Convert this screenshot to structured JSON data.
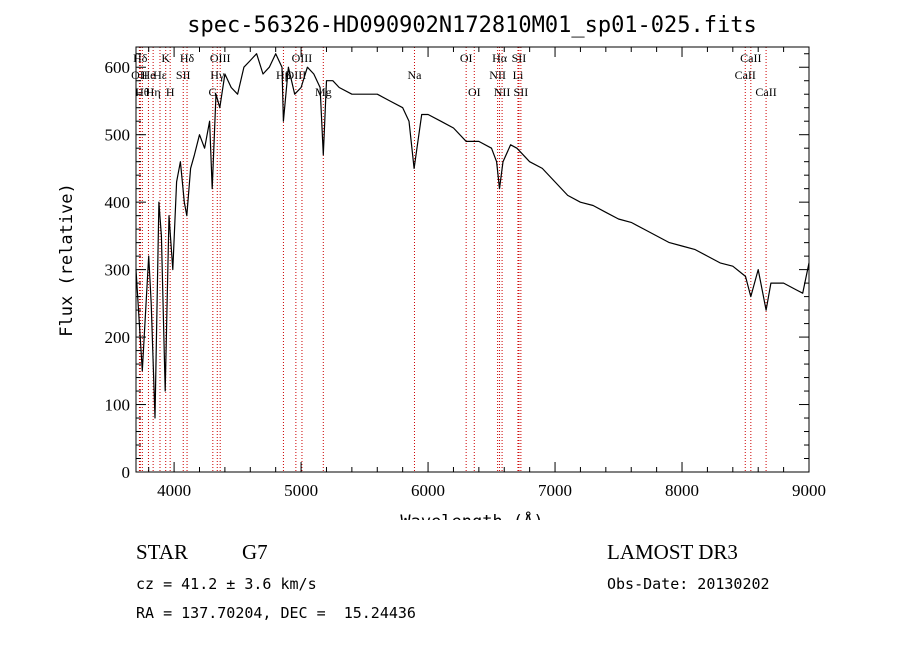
{
  "chart_data": {
    "type": "line",
    "title": "spec-56326-HD090902N172810M01_sp01-025.fits",
    "xlabel": "Wavelength (Å)",
    "ylabel": "Flux (relative)",
    "xlim": [
      3700,
      9000
    ],
    "ylim": [
      0,
      630
    ],
    "x_ticks": [
      4000,
      5000,
      6000,
      7000,
      8000,
      9000
    ],
    "y_ticks": [
      0,
      100,
      200,
      300,
      400,
      500,
      600
    ],
    "x_tick_labels": [
      "4000",
      "5000",
      "6000",
      "7000",
      "8000",
      "9000"
    ],
    "y_tick_labels": [
      "0",
      "100",
      "200",
      "300",
      "400",
      "500",
      "600"
    ],
    "series": [
      {
        "name": "flux",
        "color": "#000000",
        "x": [
          3700,
          3750,
          3800,
          3820,
          3850,
          3880,
          3900,
          3930,
          3960,
          3990,
          4020,
          4050,
          4080,
          4100,
          4130,
          4160,
          4200,
          4240,
          4280,
          4300,
          4330,
          4360,
          4400,
          4450,
          4500,
          4550,
          4600,
          4650,
          4700,
          4750,
          4800,
          4850,
          4861,
          4900,
          4950,
          5000,
          5050,
          5100,
          5150,
          5175,
          5200,
          5250,
          5300,
          5400,
          5500,
          5600,
          5700,
          5800,
          5850,
          5890,
          5950,
          6000,
          6100,
          6200,
          6300,
          6400,
          6500,
          6540,
          6563,
          6590,
          6650,
          6700,
          6800,
          6900,
          7000,
          7100,
          7200,
          7300,
          7400,
          7500,
          7600,
          7700,
          7800,
          7900,
          8000,
          8100,
          8200,
          8300,
          8400,
          8500,
          8542,
          8600,
          8662,
          8700,
          8800,
          8900,
          8950,
          9000
        ],
        "y": [
          300,
          150,
          320,
          250,
          80,
          400,
          350,
          120,
          380,
          300,
          430,
          460,
          400,
          380,
          450,
          470,
          500,
          480,
          520,
          420,
          560,
          540,
          590,
          570,
          560,
          600,
          610,
          620,
          590,
          600,
          620,
          600,
          520,
          600,
          560,
          570,
          600,
          590,
          570,
          470,
          580,
          580,
          570,
          560,
          560,
          560,
          550,
          540,
          520,
          450,
          530,
          530,
          520,
          510,
          490,
          490,
          480,
          460,
          420,
          460,
          485,
          480,
          460,
          450,
          430,
          410,
          400,
          395,
          385,
          375,
          370,
          360,
          350,
          340,
          335,
          330,
          320,
          310,
          305,
          290,
          260,
          300,
          240,
          280,
          280,
          270,
          265,
          310
        ]
      }
    ],
    "spectral_lines": [
      {
        "label": "Hδ",
        "x": 3734,
        "row": 0
      },
      {
        "label": "OII",
        "x": 3727,
        "row": 1
      },
      {
        "label": "Hθ",
        "x": 3750,
        "row": 2
      },
      {
        "label": "He",
        "x": 3798,
        "row": 1
      },
      {
        "label": "Hη",
        "x": 3835,
        "row": 2
      },
      {
        "label": "K",
        "x": 3934,
        "row": 0
      },
      {
        "label": "H",
        "x": 3969,
        "row": 2
      },
      {
        "label": "Hε",
        "x": 3889,
        "row": 1
      },
      {
        "label": "SII",
        "x": 4072,
        "row": 1
      },
      {
        "label": "Hδ",
        "x": 4102,
        "row": 0
      },
      {
        "label": "OIII",
        "x": 4363,
        "row": 0
      },
      {
        "label": "Hγ",
        "x": 4340,
        "row": 1
      },
      {
        "label": "G",
        "x": 4305,
        "row": 2
      },
      {
        "label": "OIII",
        "x": 5007,
        "row": 0
      },
      {
        "label": "OIII",
        "x": 4959,
        "row": 1
      },
      {
        "label": "Hβ",
        "x": 4861,
        "row": 1
      },
      {
        "label": "Mg",
        "x": 5175,
        "row": 2
      },
      {
        "label": "Na",
        "x": 5893,
        "row": 1
      },
      {
        "label": "OI",
        "x": 6300,
        "row": 0
      },
      {
        "label": "OI",
        "x": 6364,
        "row": 2
      },
      {
        "label": "Hα",
        "x": 6563,
        "row": 0
      },
      {
        "label": "SII",
        "x": 6716,
        "row": 0
      },
      {
        "label": "NII",
        "x": 6548,
        "row": 1
      },
      {
        "label": "Li",
        "x": 6708,
        "row": 1
      },
      {
        "label": "NII",
        "x": 6583,
        "row": 2
      },
      {
        "label": "SII",
        "x": 6731,
        "row": 2
      },
      {
        "label": "CaII",
        "x": 8542,
        "row": 0
      },
      {
        "label": "CaII",
        "x": 8498,
        "row": 1
      },
      {
        "label": "CaII",
        "x": 8662,
        "row": 2
      }
    ],
    "line_marker_color": "#cc0000"
  },
  "info": {
    "object_class": "STAR",
    "subclass": "G7",
    "survey": "LAMOST DR3",
    "redshift": "cz = 41.2 ± 3.6 km/s",
    "obs_date": "Obs-Date: 20130202",
    "coords": "RA = 137.70204, DEC =  15.24436"
  }
}
